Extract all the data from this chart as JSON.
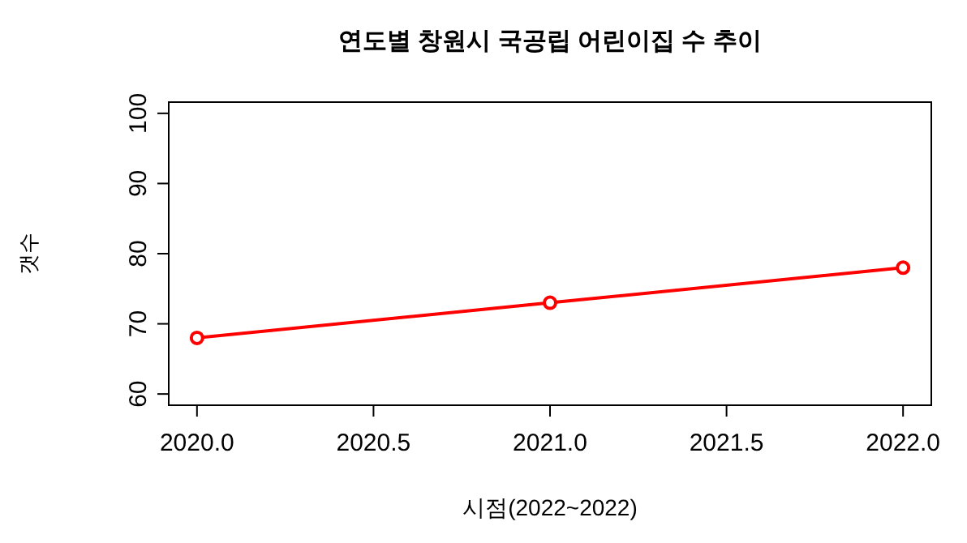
{
  "chart_data": {
    "type": "line",
    "title": "연도별 창원시 국공립 어린이집 수 추이",
    "xlabel": "시점(2022~2022)",
    "ylabel": "갯수",
    "x": [
      2020,
      2021,
      2022
    ],
    "series": [
      {
        "color": "#ff0000",
        "values": [
          68,
          73,
          78
        ]
      }
    ],
    "xlim": [
      2019.92,
      2022.08
    ],
    "xticks": [
      {
        "value": 2020,
        "label": "2020.0"
      },
      {
        "value": 2020.5,
        "label": "2020.5"
      },
      {
        "value": 2021,
        "label": "2021.0"
      },
      {
        "value": 2021.5,
        "label": "2021.5"
      },
      {
        "value": 2022,
        "label": "2022.0"
      }
    ],
    "ylim": [
      58.4,
      101.6
    ],
    "yticks": [
      60,
      70,
      80,
      90,
      100
    ],
    "marker": "circle",
    "line_style": "solid"
  }
}
